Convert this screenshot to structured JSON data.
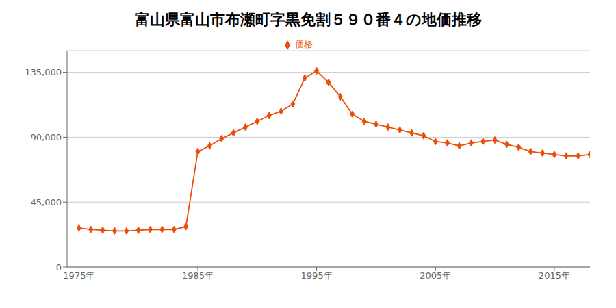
{
  "chart_data": {
    "type": "line",
    "title": "富山県富山市布瀬町字黒免割５９０番４の地価推移",
    "x": [
      1975,
      1976,
      1977,
      1978,
      1979,
      1980,
      1981,
      1982,
      1983,
      1984,
      1985,
      1986,
      1987,
      1988,
      1989,
      1990,
      1991,
      1992,
      1993,
      1994,
      1995,
      1996,
      1997,
      1998,
      1999,
      2000,
      2001,
      2002,
      2003,
      2004,
      2005,
      2006,
      2007,
      2008,
      2009,
      2010,
      2011,
      2012,
      2013,
      2014,
      2015,
      2016,
      2017,
      2018
    ],
    "series": [
      {
        "name": "価格",
        "color": "#e8500a",
        "marker": "diamond",
        "values": [
          27000,
          26000,
          25500,
          25000,
          25000,
          25500,
          26000,
          26000,
          26000,
          28000,
          80000,
          84000,
          89000,
          93000,
          97000,
          101000,
          105000,
          108000,
          113000,
          131000,
          136000,
          128000,
          118000,
          106000,
          101000,
          99000,
          97000,
          95000,
          93000,
          91000,
          87000,
          86000,
          84000,
          86000,
          87000,
          88000,
          85000,
          83000,
          80000,
          79000,
          78000,
          77000,
          77000,
          78000
        ]
      }
    ],
    "xlim": [
      1974,
      2018
    ],
    "ylim": [
      0,
      150000
    ],
    "xticks": [
      {
        "value": 1975,
        "label": "1975年"
      },
      {
        "value": 1985,
        "label": "1985年"
      },
      {
        "value": 1995,
        "label": "1995年"
      },
      {
        "value": 2005,
        "label": "2005年"
      },
      {
        "value": 2015,
        "label": "2015年"
      }
    ],
    "yticks": [
      0,
      {
        "value": 45000,
        "label": "45,000"
      },
      {
        "value": 90000,
        "label": "90,000"
      },
      {
        "value": 135000,
        "label": "135,000"
      }
    ],
    "grid": true,
    "legend": "top"
  }
}
